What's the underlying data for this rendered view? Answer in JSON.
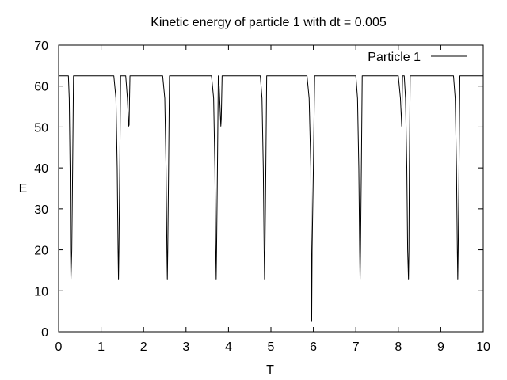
{
  "chart_data": {
    "type": "line",
    "title": "Kinetic energy of particle 1 with dt = 0.005",
    "xlabel": "T",
    "ylabel": "E",
    "xlim": [
      0,
      10
    ],
    "ylim": [
      0,
      70
    ],
    "xticks": [
      0,
      1,
      2,
      3,
      4,
      5,
      6,
      7,
      8,
      9,
      10
    ],
    "yticks": [
      0,
      10,
      20,
      30,
      40,
      50,
      60,
      70
    ],
    "grid": false,
    "legend_position": "top-right",
    "series": [
      {
        "name": "Particle 1",
        "color": "#000000",
        "x": [
          0,
          0.23,
          0.25,
          0.27,
          0.28,
          0.29,
          0.31,
          0.33,
          0.35,
          1.3,
          1.35,
          1.38,
          1.4,
          1.41,
          1.42,
          1.44,
          1.46,
          1.5,
          1.58,
          1.62,
          1.65,
          1.66,
          1.67,
          1.68,
          1.7,
          1.75,
          2.45,
          2.5,
          2.53,
          2.55,
          2.56,
          2.57,
          2.59,
          2.61,
          2.64,
          3.6,
          3.65,
          3.68,
          3.7,
          3.71,
          3.72,
          3.74,
          3.76,
          3.78,
          3.82,
          3.83,
          3.85,
          3.9,
          4.75,
          4.79,
          4.82,
          4.84,
          4.85,
          4.86,
          4.88,
          4.9,
          4.93,
          5.85,
          5.9,
          5.94,
          5.95,
          5.96,
          5.97,
          6.0,
          6.03,
          6.05,
          7.0,
          7.04,
          7.07,
          7.09,
          7.1,
          7.11,
          7.13,
          7.15,
          7.18,
          8.0,
          8.05,
          8.08,
          8.1,
          8.14,
          8.17,
          8.2,
          8.22,
          8.24,
          8.25,
          8.26,
          8.28,
          8.31,
          9.3,
          9.34,
          9.37,
          9.39,
          9.4,
          9.41,
          9.43,
          9.45,
          9.48,
          10
        ],
        "y": [
          62.5,
          62.5,
          57,
          40,
          20,
          12.7,
          20,
          40,
          62.5,
          62.5,
          57,
          40,
          20,
          12.7,
          20,
          40,
          62.5,
          62.5,
          62.5,
          57,
          50.2,
          50.5,
          57,
          62.5,
          62.5,
          62.5,
          62.5,
          57,
          40,
          20,
          12.7,
          20,
          40,
          62.5,
          62.5,
          62.5,
          57,
          40,
          20,
          12.7,
          20,
          40,
          62.5,
          60,
          50.2,
          52,
          62.5,
          62.5,
          62.5,
          57,
          40,
          20,
          12.7,
          20,
          40,
          62.5,
          62.5,
          62.5,
          57,
          40,
          20,
          2.5,
          20,
          40,
          62.5,
          62.5,
          62.5,
          57,
          40,
          20,
          12.7,
          20,
          40,
          62.5,
          62.5,
          62.5,
          57,
          50.2,
          62.5,
          62.5,
          57,
          40,
          20,
          12.7,
          20,
          40,
          62.5,
          62.5,
          62.5,
          57,
          40,
          20,
          12.7,
          20,
          40,
          62.5,
          62.5,
          62.5
        ]
      }
    ]
  }
}
